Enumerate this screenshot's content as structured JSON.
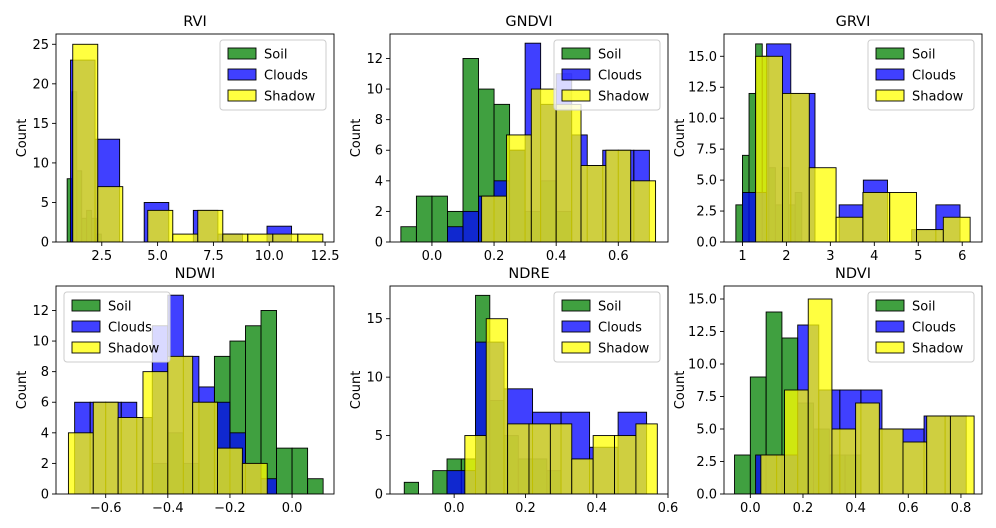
{
  "chart_data": [
    {
      "type": "histogram",
      "title": "RVI",
      "ylabel": "Count",
      "xlim": [
        0.45,
        12.9
      ],
      "ylim": [
        0,
        26.3
      ],
      "xticks": [
        2.5,
        5.0,
        7.5,
        10.0,
        12.5
      ],
      "yticks": [
        0,
        5,
        10,
        15,
        20,
        25
      ],
      "legend": "top-right",
      "series": [
        {
          "name": "Soil",
          "color": "#008000",
          "bins": [
            [
              0.95,
              1.17,
              8
            ],
            [
              1.17,
              1.38,
              19
            ],
            [
              1.38,
              1.6,
              9
            ],
            [
              1.6,
              1.82,
              3
            ],
            [
              1.82,
              2.04,
              4
            ],
            [
              2.04,
              2.26,
              3
            ],
            [
              2.26,
              2.48,
              1
            ]
          ]
        },
        {
          "name": "Clouds",
          "color": "#0000ff",
          "bins": [
            [
              1.1,
              2.2,
              23
            ],
            [
              2.2,
              3.3,
              13
            ],
            [
              3.3,
              4.4,
              0
            ],
            [
              4.4,
              5.5,
              5
            ],
            [
              5.5,
              6.6,
              0
            ],
            [
              6.6,
              7.7,
              4
            ],
            [
              7.7,
              8.8,
              1
            ],
            [
              8.8,
              9.9,
              0
            ],
            [
              9.9,
              11.0,
              2
            ]
          ]
        },
        {
          "name": "Shadow",
          "color": "#ffff00",
          "bins": [
            [
              1.2,
              2.32,
              25
            ],
            [
              2.32,
              3.44,
              7
            ],
            [
              3.44,
              4.56,
              0
            ],
            [
              4.56,
              5.68,
              4
            ],
            [
              5.68,
              6.8,
              1
            ],
            [
              6.8,
              7.92,
              4
            ],
            [
              7.92,
              9.04,
              1
            ],
            [
              9.04,
              10.16,
              1
            ],
            [
              10.16,
              11.28,
              1
            ],
            [
              11.28,
              12.4,
              1
            ]
          ]
        }
      ]
    },
    {
      "type": "histogram",
      "title": "GNDVI",
      "ylabel": "Count",
      "xlim": [
        -0.135,
        0.76
      ],
      "ylim": [
        0,
        13.6
      ],
      "xticks": [
        0.0,
        0.2,
        0.4,
        0.6
      ],
      "yticks": [
        0,
        2,
        4,
        6,
        8,
        10,
        12
      ],
      "legend": "top-right",
      "series": [
        {
          "name": "Soil",
          "color": "#008000",
          "bins": [
            [
              -0.1,
              -0.05,
              1
            ],
            [
              -0.05,
              0.0,
              3
            ],
            [
              0.0,
              0.05,
              3
            ],
            [
              0.05,
              0.1,
              2
            ],
            [
              0.1,
              0.15,
              12
            ],
            [
              0.15,
              0.2,
              10
            ],
            [
              0.2,
              0.25,
              9
            ],
            [
              0.25,
              0.3,
              6
            ],
            [
              0.3,
              0.35,
              2
            ],
            [
              0.35,
              0.4,
              4
            ],
            [
              0.4,
              0.45,
              2
            ]
          ]
        },
        {
          "name": "Clouds",
          "color": "#0000ff",
          "bins": [
            [
              0.05,
              0.1,
              1
            ],
            [
              0.1,
              0.15,
              2
            ],
            [
              0.15,
              0.2,
              3
            ],
            [
              0.2,
              0.25,
              4
            ],
            [
              0.25,
              0.3,
              6
            ],
            [
              0.3,
              0.35,
              13
            ],
            [
              0.35,
              0.4,
              9
            ],
            [
              0.4,
              0.45,
              11
            ],
            [
              0.45,
              0.5,
              7
            ],
            [
              0.5,
              0.55,
              5
            ],
            [
              0.55,
              0.6,
              6
            ],
            [
              0.6,
              0.65,
              6
            ],
            [
              0.65,
              0.7,
              6
            ]
          ]
        },
        {
          "name": "Shadow",
          "color": "#ffff00",
          "bins": [
            [
              0.16,
              0.24,
              3
            ],
            [
              0.24,
              0.32,
              7
            ],
            [
              0.32,
              0.4,
              10
            ],
            [
              0.4,
              0.48,
              9
            ],
            [
              0.48,
              0.56,
              5
            ],
            [
              0.56,
              0.64,
              6
            ],
            [
              0.64,
              0.72,
              4
            ]
          ]
        }
      ]
    },
    {
      "type": "histogram",
      "title": "GRVI",
      "ylabel": "Count",
      "xlim": [
        0.58,
        6.45
      ],
      "ylim": [
        0,
        16.8
      ],
      "xticks": [
        1,
        2,
        3,
        4,
        5,
        6
      ],
      "yticks": [
        0.0,
        2.5,
        5.0,
        7.5,
        10.0,
        12.5,
        15.0
      ],
      "legend": "top-right",
      "series": [
        {
          "name": "Soil",
          "color": "#008000",
          "bins": [
            [
              0.85,
              1.0,
              3
            ],
            [
              1.0,
              1.15,
              7
            ],
            [
              1.15,
              1.3,
              12
            ],
            [
              1.3,
              1.45,
              16
            ],
            [
              1.45,
              1.6,
              15
            ],
            [
              1.6,
              1.75,
              6
            ],
            [
              1.75,
              1.9,
              3
            ],
            [
              1.9,
              2.05,
              6
            ],
            [
              2.05,
              2.2,
              3
            ],
            [
              2.2,
              2.35,
              4
            ]
          ]
        },
        {
          "name": "Clouds",
          "color": "#0000ff",
          "bins": [
            [
              1.0,
              1.55,
              4
            ],
            [
              1.55,
              2.1,
              16
            ],
            [
              2.1,
              2.65,
              12
            ],
            [
              2.65,
              3.2,
              0
            ],
            [
              3.2,
              3.75,
              3
            ],
            [
              3.75,
              4.3,
              5
            ],
            [
              4.3,
              4.85,
              0
            ],
            [
              4.85,
              5.4,
              1
            ],
            [
              5.4,
              5.95,
              3
            ]
          ]
        },
        {
          "name": "Shadow",
          "color": "#ffff00",
          "bins": [
            [
              1.3,
              1.91,
              15
            ],
            [
              1.91,
              2.52,
              12
            ],
            [
              2.52,
              3.13,
              6
            ],
            [
              3.13,
              3.74,
              2
            ],
            [
              3.74,
              4.35,
              4
            ],
            [
              4.35,
              4.96,
              4
            ],
            [
              4.96,
              5.57,
              1
            ],
            [
              5.57,
              6.18,
              2
            ]
          ]
        }
      ]
    },
    {
      "type": "histogram",
      "title": "NDWI",
      "ylabel": "Count",
      "xlim": [
        -0.76,
        0.135
      ],
      "ylim": [
        0,
        13.6
      ],
      "xticks": [
        -0.6,
        -0.4,
        -0.2,
        0.0
      ],
      "yticks": [
        0,
        2,
        4,
        6,
        8,
        10,
        12
      ],
      "legend": "top-left",
      "series": [
        {
          "name": "Soil",
          "color": "#008000",
          "bins": [
            [
              -0.45,
              -0.4,
              2
            ],
            [
              -0.4,
              -0.35,
              4
            ],
            [
              -0.35,
              -0.3,
              2
            ],
            [
              -0.3,
              -0.25,
              6
            ],
            [
              -0.25,
              -0.2,
              9
            ],
            [
              -0.2,
              -0.15,
              10
            ],
            [
              -0.15,
              -0.1,
              11
            ],
            [
              -0.1,
              -0.05,
              12
            ],
            [
              -0.05,
              0.0,
              3
            ],
            [
              0.0,
              0.05,
              3
            ],
            [
              0.05,
              0.1,
              1
            ]
          ]
        },
        {
          "name": "Clouds",
          "color": "#0000ff",
          "bins": [
            [
              -0.7,
              -0.65,
              6
            ],
            [
              -0.65,
              -0.6,
              6
            ],
            [
              -0.6,
              -0.55,
              6
            ],
            [
              -0.55,
              -0.5,
              6
            ],
            [
              -0.5,
              -0.45,
              5
            ],
            [
              -0.45,
              -0.4,
              11
            ],
            [
              -0.4,
              -0.35,
              13
            ],
            [
              -0.35,
              -0.3,
              9
            ],
            [
              -0.3,
              -0.25,
              7
            ],
            [
              -0.25,
              -0.2,
              6
            ],
            [
              -0.2,
              -0.15,
              4
            ],
            [
              -0.15,
              -0.1,
              2
            ],
            [
              -0.1,
              -0.05,
              1
            ]
          ]
        },
        {
          "name": "Shadow",
          "color": "#ffff00",
          "bins": [
            [
              -0.72,
              -0.64,
              4
            ],
            [
              -0.64,
              -0.56,
              6
            ],
            [
              -0.56,
              -0.48,
              5
            ],
            [
              -0.48,
              -0.4,
              8
            ],
            [
              -0.4,
              -0.32,
              9
            ],
            [
              -0.32,
              -0.24,
              6
            ],
            [
              -0.24,
              -0.16,
              3
            ],
            [
              -0.16,
              -0.08,
              2
            ]
          ]
        }
      ]
    },
    {
      "type": "histogram",
      "title": "NDRE",
      "ylabel": "Count",
      "xlim": [
        -0.18,
        0.6
      ],
      "ylim": [
        0,
        17.8
      ],
      "xticks": [
        0.0,
        0.2,
        0.4,
        0.6
      ],
      "yticks": [
        0,
        5,
        10,
        15
      ],
      "legend": "top-right",
      "series": [
        {
          "name": "Soil",
          "color": "#008000",
          "bins": [
            [
              -0.14,
              -0.1,
              1
            ],
            [
              -0.1,
              -0.06,
              0
            ],
            [
              -0.06,
              -0.02,
              2
            ],
            [
              -0.02,
              0.02,
              3
            ],
            [
              0.02,
              0.06,
              3
            ],
            [
              0.06,
              0.1,
              17
            ],
            [
              0.1,
              0.14,
              8
            ],
            [
              0.14,
              0.18,
              5
            ],
            [
              0.18,
              0.22,
              3
            ],
            [
              0.22,
              0.26,
              3
            ],
            [
              0.26,
              0.3,
              2
            ]
          ]
        },
        {
          "name": "Clouds",
          "color": "#0000ff",
          "bins": [
            [
              -0.02,
              0.06,
              2
            ],
            [
              0.06,
              0.14,
              13
            ],
            [
              0.14,
              0.22,
              9
            ],
            [
              0.22,
              0.3,
              7
            ],
            [
              0.3,
              0.38,
              7
            ],
            [
              0.38,
              0.46,
              4
            ],
            [
              0.46,
              0.54,
              7
            ]
          ]
        },
        {
          "name": "Shadow",
          "color": "#ffff00",
          "bins": [
            [
              0.03,
              0.09,
              5
            ],
            [
              0.09,
              0.15,
              15
            ],
            [
              0.15,
              0.21,
              6
            ],
            [
              0.21,
              0.27,
              6
            ],
            [
              0.27,
              0.33,
              6
            ],
            [
              0.33,
              0.39,
              3
            ],
            [
              0.39,
              0.45,
              5
            ],
            [
              0.45,
              0.51,
              5
            ],
            [
              0.51,
              0.57,
              6
            ]
          ]
        }
      ]
    },
    {
      "type": "histogram",
      "title": "NDVI",
      "ylabel": "Count",
      "xlim": [
        -0.1,
        0.88
      ],
      "ylim": [
        0,
        16.0
      ],
      "xticks": [
        0.0,
        0.2,
        0.4,
        0.6,
        0.8
      ],
      "yticks": [
        0.0,
        2.5,
        5.0,
        7.5,
        10.0,
        12.5,
        15.0
      ],
      "legend": "top-right",
      "series": [
        {
          "name": "Soil",
          "color": "#008000",
          "bins": [
            [
              -0.06,
              0.0,
              3
            ],
            [
              0.0,
              0.06,
              9
            ],
            [
              0.06,
              0.12,
              14
            ],
            [
              0.12,
              0.18,
              12
            ],
            [
              0.18,
              0.24,
              7
            ],
            [
              0.24,
              0.3,
              5
            ],
            [
              0.3,
              0.36,
              3
            ],
            [
              0.36,
              0.42,
              3
            ]
          ]
        },
        {
          "name": "Clouds",
          "color": "#0000ff",
          "bins": [
            [
              0.02,
              0.1,
              3
            ],
            [
              0.1,
              0.18,
              3
            ],
            [
              0.18,
              0.26,
              13
            ],
            [
              0.26,
              0.34,
              8
            ],
            [
              0.34,
              0.42,
              8
            ],
            [
              0.42,
              0.5,
              8
            ],
            [
              0.5,
              0.58,
              5
            ],
            [
              0.58,
              0.66,
              5
            ],
            [
              0.66,
              0.74,
              6
            ],
            [
              0.74,
              0.82,
              6
            ]
          ]
        },
        {
          "name": "Shadow",
          "color": "#ffff00",
          "bins": [
            [
              0.04,
              0.13,
              3
            ],
            [
              0.13,
              0.22,
              8
            ],
            [
              0.22,
              0.31,
              15
            ],
            [
              0.31,
              0.4,
              5
            ],
            [
              0.4,
              0.49,
              7
            ],
            [
              0.49,
              0.58,
              5
            ],
            [
              0.58,
              0.67,
              4
            ],
            [
              0.67,
              0.76,
              6
            ],
            [
              0.76,
              0.85,
              6
            ]
          ]
        }
      ]
    }
  ]
}
